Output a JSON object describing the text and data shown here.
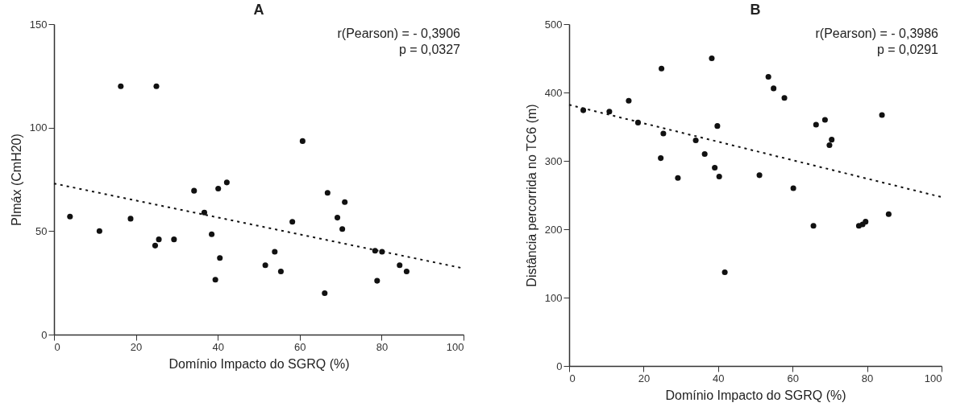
{
  "chart_data": [
    {
      "type": "scatter",
      "title": "A",
      "xlabel": "Domínio Impacto do SGRQ (%)",
      "ylabel": "PImáx (CmH20)",
      "annotations": [
        "r(Pearson) = - 0,3906",
        "p = 0,0327"
      ],
      "xlim": [
        0,
        100
      ],
      "xticks": [
        0,
        20,
        40,
        60,
        80,
        100
      ],
      "ylim": [
        0,
        150
      ],
      "yticks": [
        0,
        50,
        100,
        150
      ],
      "grid": false,
      "series": [
        {
          "color": "#111111",
          "marker": "circle",
          "x": [
            16.3,
            25,
            3.9,
            11.1,
            18.7,
            24.7,
            25.6,
            29.3,
            34.2,
            36.7,
            38.5,
            40.1,
            42.2,
            39.4,
            40.5,
            51.6,
            53.9,
            55.4,
            58.2,
            60.7,
            66.1,
            66.8,
            69.2,
            70.4,
            71,
            78.4,
            80.1,
            78.9,
            84.4,
            86.1
          ],
          "values": [
            120,
            120,
            57,
            50,
            56,
            43,
            46,
            46,
            69.5,
            59,
            48.5,
            70.5,
            73.5,
            26.5,
            37,
            33.5,
            40,
            30.5,
            54.5,
            93.5,
            20,
            68.5,
            56.5,
            51,
            64,
            40.5,
            40,
            26,
            33.5,
            30.5
          ]
        },
        {
          "type": "line",
          "color": "#111111",
          "line_style": "dotted",
          "x": [
            0,
            100
          ],
          "values": [
            73,
            32
          ]
        }
      ]
    },
    {
      "type": "scatter",
      "title": "B",
      "xlabel": "Domínio Impacto do SGRQ (%)",
      "ylabel": "Distância percorrida no TC6 (m)",
      "annotations": [
        "r(Pearson) = - 0,3986",
        "p = 0,0291"
      ],
      "xlim": [
        0,
        100
      ],
      "xticks": [
        0,
        20,
        40,
        60,
        80,
        100
      ],
      "ylim": [
        0,
        500
      ],
      "yticks": [
        0,
        100,
        200,
        300,
        400,
        500
      ],
      "grid": false,
      "series": [
        {
          "color": "#111111",
          "marker": "circle",
          "x": [
            3.8,
            10.8,
            16,
            18.5,
            24.8,
            24.6,
            25.3,
            29.2,
            34,
            36.4,
            38.3,
            39.1,
            39.8,
            40.3,
            41.8,
            51.1,
            53.5,
            54.9,
            57.8,
            60.2,
            65.6,
            66.3,
            68.7,
            70.5,
            69.9,
            77.8,
            78.8,
            79.6,
            84,
            85.8
          ],
          "values": [
            374,
            372,
            388,
            356,
            435,
            304,
            340,
            275,
            330,
            310,
            450,
            290,
            351,
            277,
            137,
            279,
            423,
            406,
            392,
            260,
            205,
            353,
            360,
            331,
            323,
            205,
            207,
            211,
            367,
            222
          ]
        },
        {
          "type": "line",
          "color": "#111111",
          "line_style": "dotted",
          "x": [
            0,
            100
          ],
          "values": [
            382,
            247
          ]
        }
      ]
    }
  ]
}
